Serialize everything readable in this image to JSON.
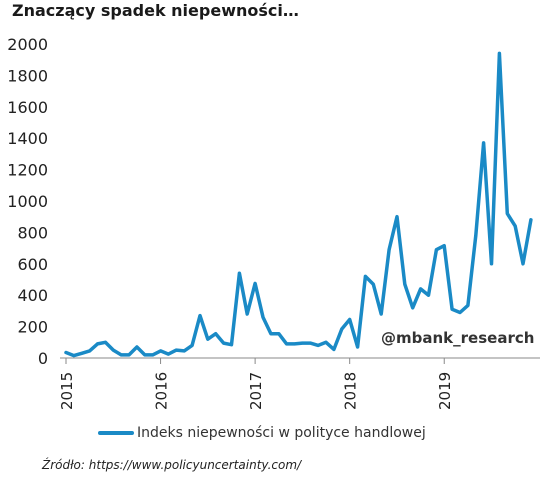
{
  "title": "Znaczący spadek niepewności…",
  "watermark": "@mbank_research",
  "source": "Źródło: https://www.policyuncertainty.com/",
  "colors": {
    "series": "#1a8ac6",
    "axis": "#8a8a8a"
  },
  "chart_data": {
    "type": "line",
    "ylim": [
      0,
      2000
    ],
    "yticks": [
      "0",
      "200",
      "400",
      "600",
      "800",
      "1000",
      "1200",
      "1400",
      "1600",
      "1800",
      "2000"
    ],
    "xticks": [
      "2015",
      "2016",
      "2017",
      "2018",
      "2019"
    ],
    "grid": false,
    "legend_position": "bottom",
    "series": [
      {
        "name": "Indeks niepewności w polityce handlowej",
        "x": [
          "2015-01",
          "2015-02",
          "2015-03",
          "2015-04",
          "2015-05",
          "2015-06",
          "2015-07",
          "2015-08",
          "2015-09",
          "2015-10",
          "2015-11",
          "2015-12",
          "2016-01",
          "2016-02",
          "2016-03",
          "2016-04",
          "2016-05",
          "2016-06",
          "2016-07",
          "2016-08",
          "2016-09",
          "2016-10",
          "2016-11",
          "2016-12",
          "2017-01",
          "2017-02",
          "2017-03",
          "2017-04",
          "2017-05",
          "2017-06",
          "2017-07",
          "2017-08",
          "2017-09",
          "2017-10",
          "2017-11",
          "2017-12",
          "2018-01",
          "2018-02",
          "2018-03",
          "2018-04",
          "2018-05",
          "2018-06",
          "2018-07",
          "2018-08",
          "2018-09",
          "2018-10",
          "2018-11",
          "2018-12",
          "2019-01",
          "2019-02",
          "2019-03",
          "2019-04",
          "2019-05",
          "2019-06",
          "2019-07",
          "2019-08",
          "2019-09",
          "2019-10",
          "2019-11",
          "2019-12"
        ],
        "values": [
          35,
          15,
          30,
          45,
          90,
          100,
          50,
          20,
          20,
          70,
          20,
          20,
          45,
          25,
          50,
          45,
          80,
          270,
          120,
          155,
          95,
          85,
          540,
          280,
          475,
          260,
          155,
          155,
          90,
          90,
          95,
          95,
          80,
          100,
          55,
          185,
          245,
          70,
          520,
          470,
          280,
          690,
          900,
          470,
          320,
          440,
          400,
          690,
          715,
          310,
          290,
          335,
          780,
          1370,
          600,
          1940,
          920,
          840,
          600,
          880
        ]
      }
    ]
  }
}
